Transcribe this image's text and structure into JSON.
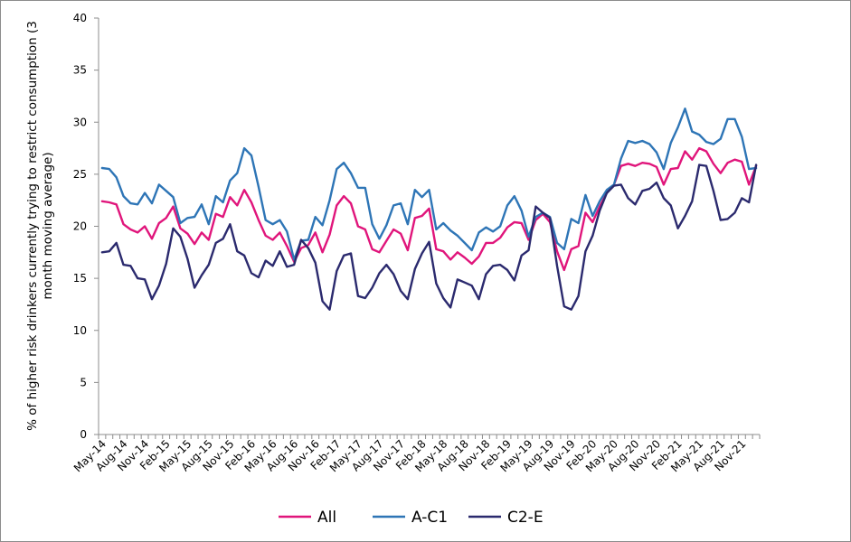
{
  "chart_data": {
    "type": "line",
    "title": "",
    "xlabel": "",
    "ylabel_lines": [
      "% of higher risk drinkers currently trying to restrict consumption (3",
      "month moving average)"
    ],
    "ylim": [
      0,
      40
    ],
    "yticks": [
      0,
      5,
      10,
      15,
      20,
      25,
      30,
      35,
      40
    ],
    "grid": false,
    "legend_position": "bottom",
    "x_tick_labels": [
      "May-14",
      "Aug-14",
      "Nov-14",
      "Feb-15",
      "May-15",
      "Aug-15",
      "Nov-15",
      "Feb-16",
      "May-16",
      "Aug-16",
      "Nov-16",
      "Feb-17",
      "May-17",
      "Aug-17",
      "Nov-17",
      "Feb-18",
      "May-18",
      "Aug-18",
      "Nov-18",
      "Feb-19",
      "May-19",
      "Aug-19",
      "Nov-19",
      "Feb-20",
      "May-20",
      "Aug-20",
      "Nov-20",
      "Feb-21",
      "May-21",
      "Aug-21",
      "Nov-21"
    ],
    "series": [
      {
        "name": "All",
        "color": "#e0157b",
        "values": [
          22.4,
          22.3,
          22.1,
          20.2,
          19.7,
          19.4,
          20.0,
          18.8,
          20.3,
          20.8,
          21.9,
          19.8,
          19.3,
          18.3,
          19.4,
          18.7,
          21.2,
          20.9,
          22.8,
          22.0,
          23.5,
          22.3,
          20.6,
          19.1,
          18.7,
          19.4,
          18.1,
          16.6,
          17.9,
          18.2,
          19.4,
          17.5,
          19.2,
          22.0,
          22.9,
          22.2,
          20.0,
          19.7,
          17.8,
          17.5,
          18.6,
          19.7,
          19.3,
          17.7,
          20.8,
          21.0,
          21.7,
          17.8,
          17.6,
          16.8,
          17.5,
          17.0,
          16.4,
          17.1,
          18.4,
          18.4,
          18.9,
          19.9,
          20.4,
          20.3,
          18.7,
          20.6,
          21.2,
          20.4,
          17.6,
          15.8,
          17.8,
          18.1,
          21.3,
          20.4,
          21.9,
          23.2,
          24.0,
          25.8,
          26.0,
          25.8,
          26.1,
          26.0,
          25.7,
          24.0,
          25.5,
          25.6,
          27.2,
          26.4,
          27.5,
          27.2,
          26.0,
          25.1,
          26.1,
          26.4,
          26.2,
          24.0,
          25.8
        ]
      },
      {
        "name": "A-C1",
        "color": "#2e75b6",
        "values": [
          25.6,
          25.5,
          24.7,
          22.9,
          22.2,
          22.1,
          23.2,
          22.2,
          24.0,
          23.4,
          22.8,
          20.3,
          20.8,
          20.9,
          22.1,
          20.2,
          22.9,
          22.3,
          24.4,
          25.1,
          27.5,
          26.8,
          23.8,
          20.6,
          20.2,
          20.6,
          19.5,
          16.8,
          18.6,
          18.7,
          20.9,
          20.1,
          22.5,
          25.5,
          26.1,
          25.1,
          23.7,
          23.7,
          20.2,
          18.8,
          20.1,
          22.0,
          22.2,
          20.2,
          23.5,
          22.8,
          23.5,
          19.7,
          20.3,
          19.6,
          19.1,
          18.4,
          17.7,
          19.4,
          19.9,
          19.5,
          20.0,
          22.0,
          22.9,
          21.5,
          19.0,
          20.9,
          21.3,
          20.9,
          18.4,
          17.8,
          20.7,
          20.3,
          23.0,
          21.0,
          22.4,
          23.5,
          24.0,
          26.5,
          28.2,
          28.0,
          28.2,
          27.9,
          27.1,
          25.5,
          28.0,
          29.5,
          31.3,
          29.1,
          28.8,
          28.1,
          27.9,
          28.4,
          30.3,
          30.3,
          28.6,
          25.5,
          25.6
        ]
      },
      {
        "name": "C2-E",
        "color": "#2b2a6e",
        "values": [
          17.5,
          17.6,
          18.4,
          16.3,
          16.2,
          15.0,
          14.9,
          13.0,
          14.3,
          16.4,
          19.8,
          19.0,
          16.9,
          14.1,
          15.3,
          16.3,
          18.4,
          18.8,
          20.2,
          17.6,
          17.2,
          15.5,
          15.1,
          16.7,
          16.2,
          17.6,
          16.1,
          16.3,
          18.7,
          17.9,
          16.5,
          12.8,
          12.0,
          15.7,
          17.2,
          17.4,
          13.3,
          13.1,
          14.1,
          15.5,
          16.3,
          15.4,
          13.8,
          13.0,
          15.9,
          17.4,
          18.5,
          14.5,
          13.1,
          12.2,
          14.9,
          14.6,
          14.3,
          13.0,
          15.4,
          16.2,
          16.3,
          15.8,
          14.8,
          17.2,
          17.7,
          21.9,
          21.3,
          20.8,
          16.2,
          12.3,
          12.0,
          13.3,
          17.6,
          19.1,
          21.5,
          23.2,
          23.9,
          24.0,
          22.7,
          22.1,
          23.4,
          23.6,
          24.2,
          22.7,
          22.0,
          19.8,
          21.0,
          22.4,
          25.9,
          25.8,
          23.4,
          20.6,
          20.7,
          21.3,
          22.7,
          22.3,
          25.9
        ]
      }
    ]
  }
}
